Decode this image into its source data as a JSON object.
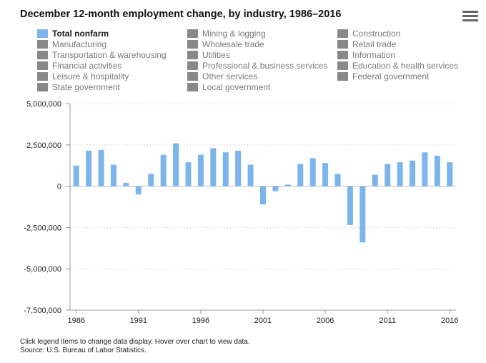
{
  "title": "December 12-month employment change, by industry, 1986–2016",
  "menu_icon": "hamburger-menu-icon",
  "colors": {
    "series": "#7cb5ec",
    "inactive": "#888888",
    "grid": "#c0c0c0",
    "axis": "#999999"
  },
  "legend": [
    "Total nonfarm",
    "Mining & logging",
    "Construction",
    "Manufacturing",
    "Wholesale trade",
    "Retail trade",
    "Transportation & warehousing",
    "Utilities",
    "Information",
    "Financial activities",
    "Professional & business services",
    "Education & health services",
    "Leisure & hospitality",
    "Other services",
    "Federal government",
    "State government",
    "Local government"
  ],
  "active_legend": "Total nonfarm",
  "footer": {
    "note": "Click legend items to change data display. Hover over chart to view data.",
    "source": "Source: U.S. Bureau of Labor Statistics."
  },
  "chart_data": {
    "type": "bar",
    "title": "December 12-month employment change, by industry, 1986–2016",
    "xlabel": "",
    "ylabel": "",
    "categories": [
      1986,
      1987,
      1988,
      1989,
      1990,
      1991,
      1992,
      1993,
      1994,
      1995,
      1996,
      1997,
      1998,
      1999,
      2000,
      2001,
      2002,
      2003,
      2004,
      2005,
      2006,
      2007,
      2008,
      2009,
      2010,
      2011,
      2012,
      2013,
      2014,
      2015,
      2016
    ],
    "series": [
      {
        "name": "Total nonfarm",
        "values": [
          1250000,
          2150000,
          2200000,
          1300000,
          200000,
          -500000,
          750000,
          1900000,
          2600000,
          1450000,
          1900000,
          2300000,
          2050000,
          2150000,
          1300000,
          -1100000,
          -300000,
          100000,
          1350000,
          1700000,
          1400000,
          750000,
          -2350000,
          -3400000,
          700000,
          1350000,
          1450000,
          1550000,
          2050000,
          1850000,
          1450000
        ]
      }
    ],
    "ylim": [
      -7500000,
      5000000
    ],
    "yticks": [
      5000000,
      2500000,
      0,
      -2500000,
      -5000000,
      -7500000
    ],
    "ytick_labels": [
      "5,000,000",
      "2,500,000",
      "0",
      "-2,500,000",
      "-5,000,000",
      "-7,500,000"
    ],
    "xticks": [
      1986,
      1991,
      1996,
      2001,
      2006,
      2011,
      2016
    ],
    "xtick_labels": [
      "1986",
      "1991",
      "1996",
      "2001",
      "2006",
      "2011",
      "2016"
    ],
    "grid": true,
    "legend_position": "top"
  }
}
